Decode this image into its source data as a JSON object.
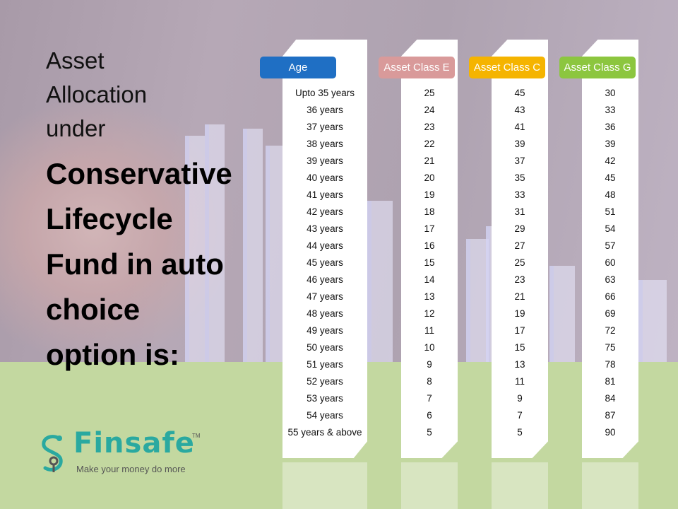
{
  "title": {
    "line1": "Asset",
    "line2": "Allocation",
    "line3": "under",
    "bold_lines": [
      "Conservative",
      "Lifecycle",
      "Fund in auto",
      "choice",
      "option is:"
    ]
  },
  "table": {
    "headers": [
      "Age",
      "Asset Class E",
      "Asset Class C",
      "Asset Class G"
    ],
    "rows": [
      [
        "Upto 35 years",
        "25",
        "45",
        "30"
      ],
      [
        "36 years",
        "24",
        "43",
        "33"
      ],
      [
        "37 years",
        "23",
        "41",
        "36"
      ],
      [
        "38 years",
        "22",
        "39",
        "39"
      ],
      [
        "39 years",
        "21",
        "37",
        "42"
      ],
      [
        "40 years",
        "20",
        "35",
        "45"
      ],
      [
        "41 years",
        "19",
        "33",
        "48"
      ],
      [
        "42 years",
        "18",
        "31",
        "51"
      ],
      [
        "43 years",
        "17",
        "29",
        "54"
      ],
      [
        "44 years",
        "16",
        "27",
        "57"
      ],
      [
        "45 years",
        "15",
        "25",
        "60"
      ],
      [
        "46 years",
        "14",
        "23",
        "63"
      ],
      [
        "47 years",
        "13",
        "21",
        "66"
      ],
      [
        "48 years",
        "12",
        "19",
        "69"
      ],
      [
        "49 years",
        "11",
        "17",
        "72"
      ],
      [
        "50 years",
        "10",
        "15",
        "75"
      ],
      [
        "51 years",
        "9",
        "13",
        "78"
      ],
      [
        "52 years",
        "8",
        "11",
        "81"
      ],
      [
        "53 years",
        "7",
        "9",
        "84"
      ],
      [
        "54 years",
        "6",
        "7",
        "87"
      ],
      [
        "55 years & above",
        "5",
        "5",
        "90"
      ]
    ]
  },
  "colors": {
    "age_header": "#1f6fc4",
    "class_e_header": "#d99a9a",
    "class_c_header": "#f5b400",
    "class_g_header": "#8cc63f",
    "brand": "#2aa9a0"
  },
  "logo": {
    "name": "Finsafe",
    "tm": "TM",
    "tagline": "Make your money do more",
    "icon": "finsafe-s-icon"
  }
}
